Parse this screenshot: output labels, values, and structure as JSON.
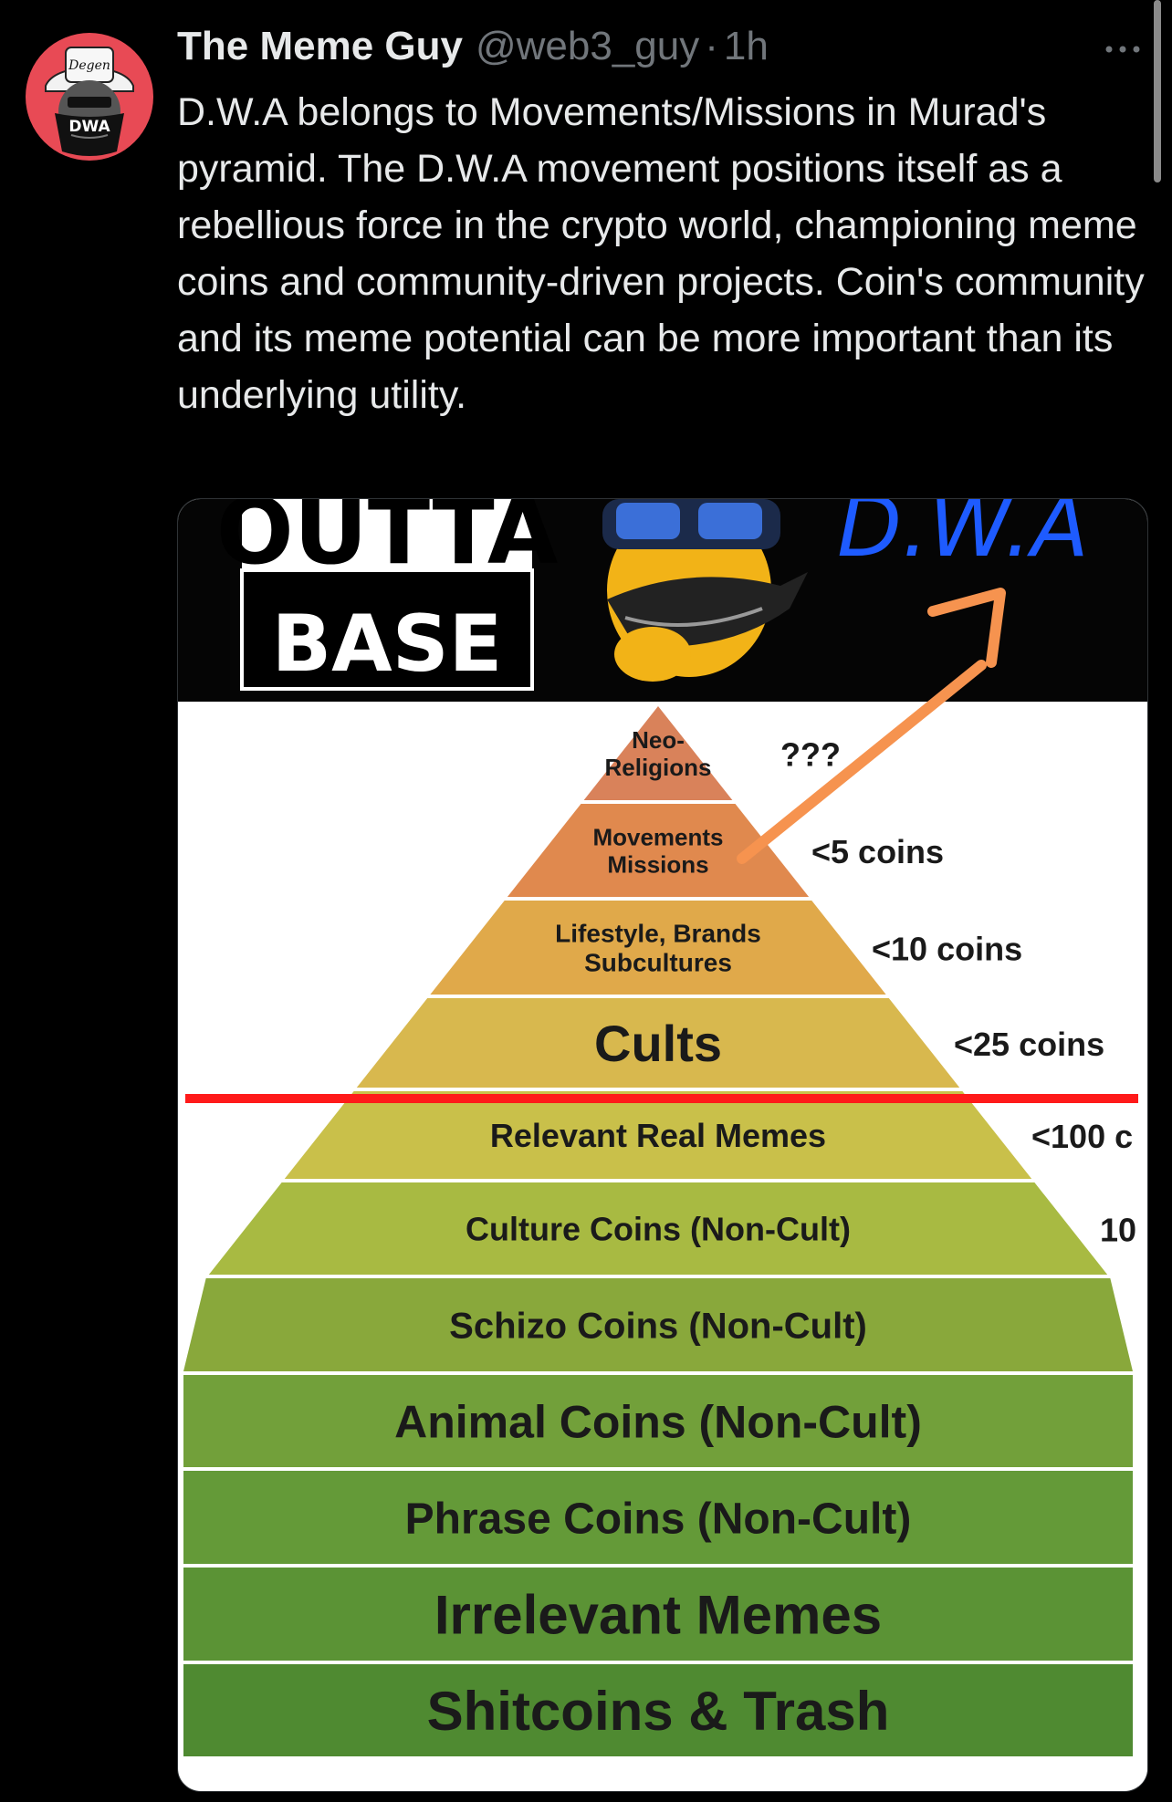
{
  "author": {
    "name": "The Meme Guy",
    "handle": "@web3_guy",
    "separator": "·",
    "time": "1h"
  },
  "avatar": {
    "hat_text": "Degen",
    "mask_text": "DWA"
  },
  "tweet": {
    "text": "D.W.A belongs to Movements/Missions in Murad's pyramid. The D.W.A movement positions itself as a rebellious force in the crypto world, championing meme coins and community-driven projects. Coin's community and its meme potential can be more important than its underlying utility."
  },
  "media": {
    "banner": {
      "left_text_top": "OUTTA",
      "left_text_bottom": "BASE",
      "right_text": "D.W.A"
    },
    "pyramid": {
      "tiers": [
        {
          "label": "Neo-\nReligions",
          "color": "#d9825a",
          "count": "???"
        },
        {
          "label": "Movements\nMissions",
          "color": "#e0894e",
          "count": "<5 coins"
        },
        {
          "label": "Lifestyle, Brands\nSubcultures",
          "color": "#e0a94a",
          "count": "<10 coins"
        },
        {
          "label": "Cults",
          "color": "#d8b84e",
          "count": "<25 coins"
        },
        {
          "label": "Relevant Real Memes",
          "color": "#c9c04a",
          "count": "<100 c"
        },
        {
          "label": "Culture Coins (Non-Cult)",
          "color": "#a8ba42",
          "count": "10"
        },
        {
          "label": "Schizo Coins (Non-Cult)",
          "color": "#89a83b",
          "count": ""
        },
        {
          "label": "Animal Coins (Non-Cult)",
          "color": "#72a03a",
          "count": ""
        },
        {
          "label": "Phrase Coins (Non-Cult)",
          "color": "#649a38",
          "count": ""
        },
        {
          "label": "Irrelevant Memes",
          "color": "#5b9335",
          "count": ""
        },
        {
          "label": "Shitcoins & Trash",
          "color": "#4f8a31",
          "count": ""
        }
      ],
      "divider_color": "#ff1a1a",
      "arrow_color": "#f6934f"
    }
  },
  "colors": {
    "background": "#000000",
    "text_primary": "#e7e9ea",
    "text_secondary": "#71767b",
    "avatar_bg": "#e84a55",
    "dwa_blue": "#1e5bff"
  }
}
